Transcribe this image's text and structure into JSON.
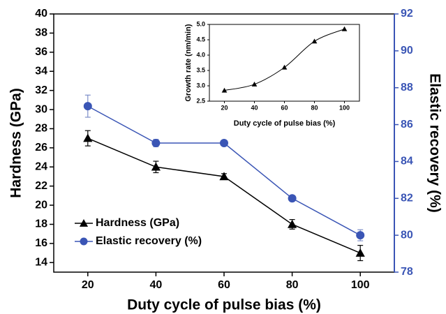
{
  "chart_data": [
    {
      "type": "line",
      "x_label": "Duty cycle of pulse bias (%)",
      "y_label": "Hardness (GPa)",
      "y2_label": "Elastic recovery (%)",
      "x": [
        20,
        40,
        60,
        80,
        100
      ],
      "xlim": [
        10,
        110
      ],
      "xticks": [
        20,
        40,
        60,
        80,
        100
      ],
      "ylim": [
        13,
        40
      ],
      "yticks": [
        14,
        16,
        18,
        20,
        22,
        24,
        26,
        28,
        30,
        32,
        34,
        36,
        38,
        40
      ],
      "y2lim": [
        78,
        92
      ],
      "y2ticks": [
        78,
        80,
        82,
        84,
        86,
        88,
        90,
        92
      ],
      "y2_color": "#3a55b5",
      "legend": "lower left",
      "series": [
        {
          "name": "Hardness (GPa)",
          "color": "#000000",
          "marker": "triangle",
          "values": [
            27,
            24,
            23,
            18,
            15
          ],
          "errors": [
            0.8,
            0.6,
            0.3,
            0.5,
            0.8
          ]
        },
        {
          "name": "Elastic recovery (%)",
          "color": "#3a55b5",
          "marker": "circle",
          "axis": "y2",
          "values": [
            87,
            85,
            85,
            82,
            80
          ],
          "errors": [
            0.6,
            0.2,
            0,
            0.15,
            0.3
          ]
        }
      ]
    },
    {
      "type": "line",
      "x_label": "Duty cycle of pulse bias (%)",
      "y_label": "Growth rate (nm/min)",
      "x": [
        20,
        40,
        60,
        80,
        100
      ],
      "xlim": [
        10,
        110
      ],
      "xticks": [
        20,
        40,
        60,
        80,
        100
      ],
      "ylim": [
        2.5,
        5.0
      ],
      "yticks": [
        2.5,
        {
          "value": 3,
          "label": "3.0"
        },
        3.5,
        {
          "value": 4,
          "label": "4.0"
        },
        4.5,
        {
          "value": 5,
          "label": "5.0"
        }
      ],
      "smooth": true,
      "series": [
        {
          "color": "#000000",
          "marker": "triangle",
          "values": [
            2.85,
            3.05,
            3.6,
            4.45,
            4.85
          ]
        }
      ]
    }
  ]
}
